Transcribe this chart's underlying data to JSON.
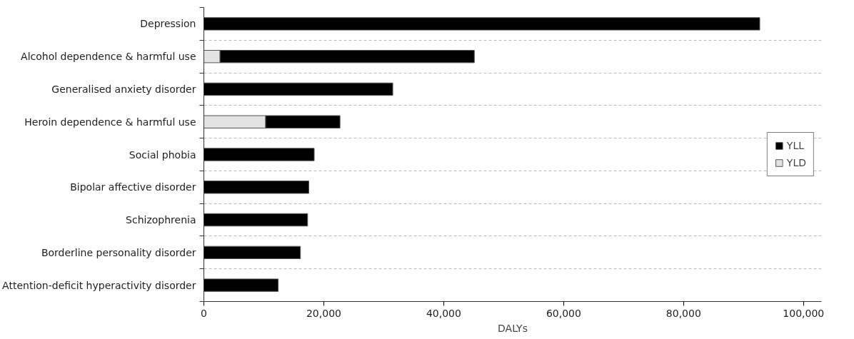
{
  "chart_data": {
    "type": "bar",
    "orientation": "horizontal",
    "stacked": true,
    "xlabel": "DALYs",
    "categories": [
      "Depression",
      "Alcohol dependence & harmful use",
      "Generalised anxiety disorder",
      "Heroin dependence & harmful use",
      "Social phobia",
      "Bipolar affective disorder",
      "Schizophrenia",
      "Borderline personality disorder",
      "Attention-deficit hyperactivity disorder"
    ],
    "series": [
      {
        "name": "YLD",
        "color": "#e3e3e3",
        "values": [
          0,
          2700,
          0,
          10300,
          0,
          0,
          0,
          0,
          0
        ]
      },
      {
        "name": "YLL",
        "color": "#000000",
        "values": [
          92700,
          42400,
          31500,
          12400,
          18400,
          17500,
          17300,
          16100,
          12400
        ]
      }
    ],
    "xlim": [
      0,
      103000
    ],
    "xticks": [
      {
        "value": 0,
        "label": "0"
      },
      {
        "value": 20000,
        "label": "20,000"
      },
      {
        "value": 40000,
        "label": "40,000"
      },
      {
        "value": 60000,
        "label": "60,000"
      },
      {
        "value": 80000,
        "label": "80,000"
      },
      {
        "value": 100000,
        "label": "100,000"
      }
    ],
    "grid": "y",
    "legend": "right"
  }
}
